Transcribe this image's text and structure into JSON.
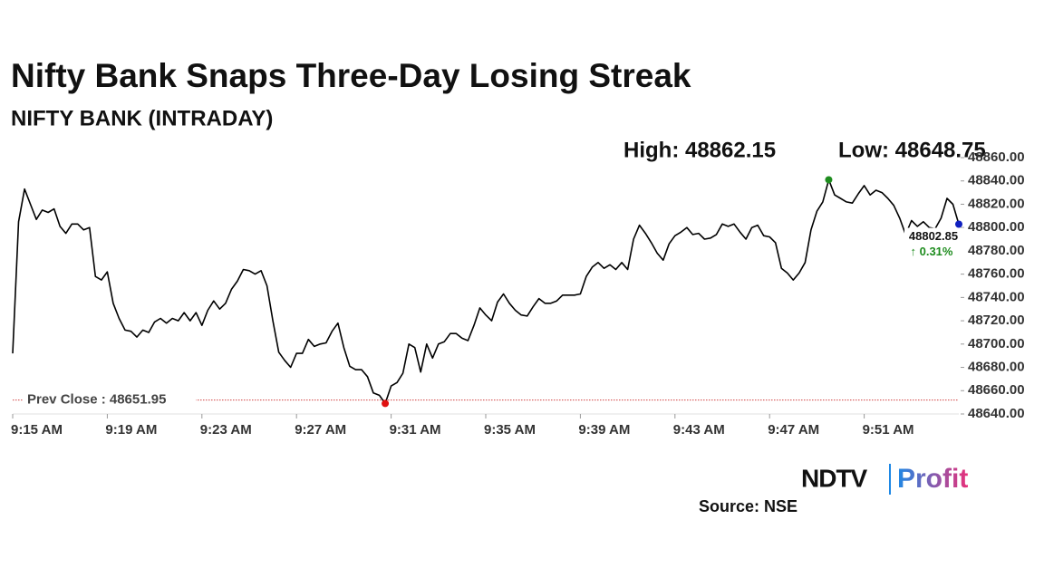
{
  "chart_data": {
    "type": "line",
    "title": "Nifty Bank Snaps Three-Day Losing Streak",
    "subtitle": "NIFTY BANK (INTRADAY)",
    "high_label": "High: 48862.15",
    "low_label": "Low: 48648.75",
    "categories": [
      "9:15 AM",
      null,
      null,
      null,
      null,
      null,
      null,
      null,
      null,
      null,
      null,
      null,
      null,
      null,
      null,
      null,
      "9:19 AM",
      null,
      null,
      null,
      null,
      null,
      null,
      null,
      null,
      null,
      null,
      null,
      null,
      null,
      null,
      null,
      "9:23 AM",
      null,
      null,
      null,
      null,
      null,
      null,
      null,
      null,
      null,
      null,
      null,
      null,
      null,
      null,
      null,
      "9:27 AM",
      null,
      null,
      null,
      null,
      null,
      null,
      null,
      null,
      null,
      null,
      null,
      null,
      null,
      null,
      null,
      "9:31 AM",
      null,
      null,
      null,
      null,
      null,
      null,
      null,
      null,
      null,
      null,
      null,
      null,
      null,
      null,
      null,
      "9:35 AM",
      null,
      null,
      null,
      null,
      null,
      null,
      null,
      null,
      null,
      null,
      null,
      null,
      null,
      null,
      null,
      "9:39 AM",
      null,
      null,
      null,
      null,
      null,
      null,
      null,
      null,
      null,
      null,
      null,
      null,
      null,
      null,
      null,
      "9:43 AM",
      null,
      null,
      null,
      null,
      null,
      null,
      null,
      null,
      null,
      null,
      null,
      null,
      null,
      null,
      null,
      "9:47 AM",
      null,
      null,
      null,
      null,
      null,
      null,
      null,
      null,
      null,
      null,
      null,
      null,
      null,
      null,
      null,
      "9:51 AM",
      null,
      null,
      null,
      null,
      null,
      null,
      null,
      null,
      null,
      null,
      null,
      null,
      null,
      null,
      null,
      null
    ],
    "values": [
      48692,
      48805,
      48833,
      48820,
      48807,
      48815,
      48813,
      48816,
      48801,
      48795,
      48803,
      48803,
      48798,
      48800,
      48758,
      48755,
      48762,
      48735,
      48722,
      48712,
      48711,
      48706,
      48712,
      48710,
      48719,
      48722,
      48718,
      48722,
      48720,
      48727,
      48720,
      48727,
      48716,
      48729,
      48737,
      48730,
      48735,
      48747,
      48754,
      48764,
      48763,
      48760,
      48763,
      48750,
      48720,
      48693,
      48686,
      48680,
      48692,
      48692,
      48704,
      48698,
      48700,
      48701,
      48711,
      48718,
      48697,
      48681,
      48678,
      48678,
      48672,
      48658,
      48656,
      48649,
      48664,
      48667,
      48675,
      48700,
      48697,
      48676,
      48700,
      48688,
      48700,
      48702,
      48709,
      48709,
      48705,
      48703,
      48716,
      48731,
      48725,
      48720,
      48736,
      48743,
      48735,
      48729,
      48725,
      48724,
      48732,
      48739,
      48735,
      48735,
      48737,
      48742,
      48742,
      48742,
      48743,
      48758,
      48766,
      48770,
      48765,
      48768,
      48764,
      48770,
      48764,
      48790,
      48802,
      48795,
      48787,
      48778,
      48772,
      48786,
      48793,
      48796,
      48800,
      48794,
      48795,
      48790,
      48791,
      48794,
      48803,
      48801,
      48803,
      48796,
      48790,
      48800,
      48802,
      48793,
      48792,
      48787,
      48765,
      48761,
      48755,
      48761,
      48770,
      48798,
      48814,
      48822,
      48841,
      48828,
      48825,
      48822,
      48821,
      48829,
      48836,
      48828,
      48832,
      48830,
      48825,
      48819,
      48808,
      48794,
      48806,
      48801,
      48805,
      48800,
      48799,
      48808,
      48825,
      48820,
      48802.85
    ],
    "color": "#000000",
    "high_marker_color": "#1e8c1e",
    "low_marker_color": "#e01010",
    "last_marker_color": "#1020c0",
    "ylim": [
      48640,
      48860
    ],
    "yticks": [
      {
        "value": 48640,
        "label": "48640.00"
      },
      {
        "value": 48660,
        "label": "48660.00"
      },
      {
        "value": 48680,
        "label": "48680.00"
      },
      {
        "value": 48700,
        "label": "48700.00"
      },
      {
        "value": 48720,
        "label": "48720.00"
      },
      {
        "value": 48740,
        "label": "48740.00"
      },
      {
        "value": 48760,
        "label": "48760.00"
      },
      {
        "value": 48780,
        "label": "48780.00"
      },
      {
        "value": 48800,
        "label": "48800.00"
      },
      {
        "value": 48820,
        "label": "48820.00"
      },
      {
        "value": 48840,
        "label": "48840.00"
      },
      {
        "value": 48860,
        "label": "48860.00"
      }
    ],
    "reference_line": {
      "value": 48651.95,
      "label": "Prev Close : 48651.95",
      "color": "#d04040"
    },
    "last_value_label": "48802.85",
    "change_label": "↑ 0.31%",
    "change_color": "#1e8c1e",
    "logo": {
      "left": "NDTV",
      "right": "Profit"
    },
    "source": "Source: NSE"
  }
}
